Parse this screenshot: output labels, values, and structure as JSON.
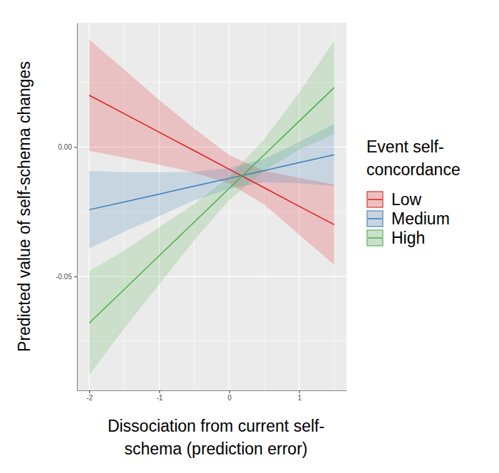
{
  "chart_data": {
    "type": "line",
    "x_label": [
      "Dissociation from current self-",
      "schema (prediction error)"
    ],
    "y_label": "Predicted value of self-schema changes",
    "legend_title": [
      "Event self-",
      "concordance"
    ],
    "legend": "right",
    "grid": true,
    "x": [
      -2,
      -1.5,
      -1,
      -0.5,
      0,
      0.5,
      1,
      1.5
    ],
    "xlim": [
      -2.175,
      1.675
    ],
    "xticks": [
      -2,
      -1,
      0,
      1
    ],
    "ylim": [
      -0.094,
      0.048
    ],
    "yticks": [
      {
        "value": -0.05,
        "label": "-0.05"
      },
      {
        "value": 0,
        "label": "0.00"
      }
    ],
    "series": [
      {
        "name": "Low",
        "color": "#E41A1C",
        "values": [
          0.02,
          0.0129,
          0.0057,
          -0.0014,
          -0.0086,
          -0.0157,
          -0.0229,
          -0.03
        ],
        "lower": [
          -0.0015,
          -0.0041,
          -0.0068,
          -0.0099,
          -0.0141,
          -0.0222,
          -0.0339,
          -0.0455
        ],
        "upper": [
          0.0415,
          0.0299,
          0.0182,
          0.0071,
          -0.0031,
          -0.0092,
          -0.0119,
          -0.0145
        ]
      },
      {
        "name": "Medium",
        "color": "#377EB8",
        "values": [
          -0.0242,
          -0.0212,
          -0.0182,
          -0.0151,
          -0.0121,
          -0.0091,
          -0.006,
          -0.003
        ],
        "lower": [
          -0.0392,
          -0.0327,
          -0.0267,
          -0.0206,
          -0.0161,
          -0.0136,
          -0.014,
          -0.015
        ],
        "upper": [
          -0.0092,
          -0.0097,
          -0.0097,
          -0.0096,
          -0.0081,
          -0.0046,
          0.002,
          0.009
        ]
      },
      {
        "name": "High",
        "color": "#4DAF4A",
        "values": [
          -0.068,
          -0.055,
          -0.042,
          -0.029,
          -0.016,
          -0.003,
          0.01,
          0.023
        ],
        "lower": [
          -0.088,
          -0.07,
          -0.053,
          -0.036,
          -0.0205,
          -0.009,
          -0.001,
          0.005
        ],
        "upper": [
          -0.048,
          -0.04,
          -0.031,
          -0.022,
          -0.0115,
          0.003,
          0.021,
          0.041
        ]
      }
    ]
  }
}
